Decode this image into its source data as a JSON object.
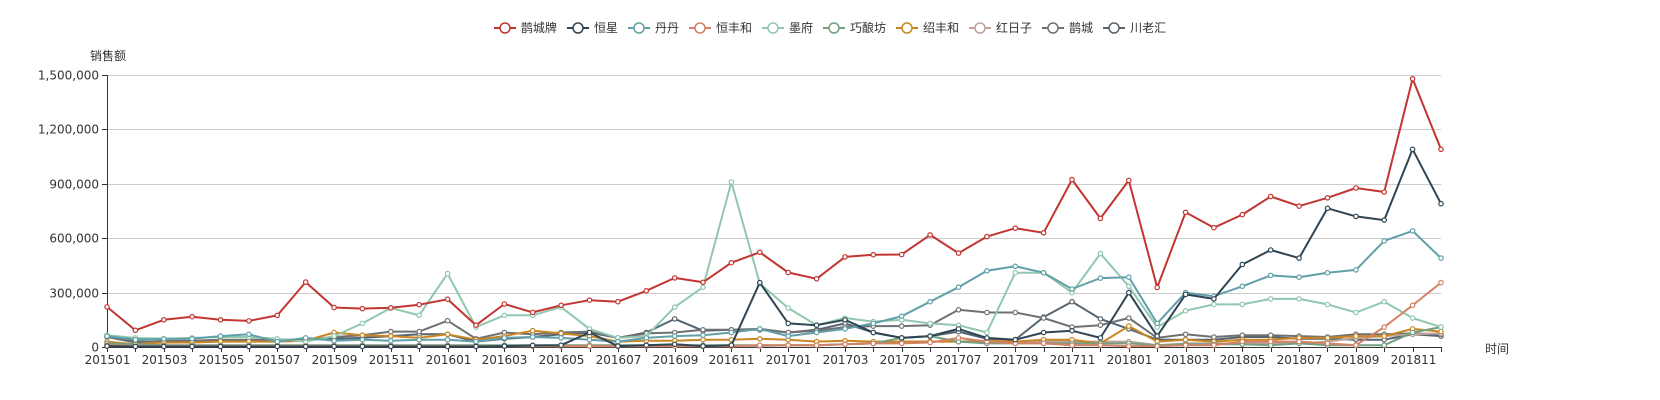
{
  "chart_data": {
    "type": "line",
    "title": "",
    "xlabel": "时间",
    "ylabel": "销售额",
    "ylim": [
      0,
      1500000
    ],
    "yticks": [
      0,
      300000,
      600000,
      900000,
      1200000,
      1500000
    ],
    "ytick_labels": [
      "0",
      "300,000",
      "600,000",
      "900,000",
      "1,200,000",
      "1,500,000"
    ],
    "grid": true,
    "legend_position": "top-center",
    "x": [
      "201501",
      "201502",
      "201503",
      "201504",
      "201505",
      "201506",
      "201507",
      "201508",
      "201509",
      "201510",
      "201511",
      "201512",
      "201601",
      "201602",
      "201603",
      "201604",
      "201605",
      "201606",
      "201607",
      "201608",
      "201609",
      "201610",
      "201611",
      "201612",
      "201701",
      "201702",
      "201703",
      "201704",
      "201705",
      "201706",
      "201707",
      "201708",
      "201709",
      "201710",
      "201711",
      "201712",
      "201801",
      "201802",
      "201803",
      "201804",
      "201805",
      "201806",
      "201807",
      "201808",
      "201809",
      "201810",
      "201811",
      "201812"
    ],
    "xtick_labels": [
      "201501",
      "201503",
      "201505",
      "201507",
      "201509",
      "201511",
      "201601",
      "201603",
      "201605",
      "201607",
      "201609",
      "201611",
      "201701",
      "201703",
      "201705",
      "201707",
      "201709",
      "201711",
      "201801",
      "201803",
      "201805",
      "201807",
      "201809",
      "201811"
    ],
    "series": [
      {
        "name": "鹊城牌",
        "color": "#c23531",
        "values": [
          221000,
          92000,
          150000,
          167000,
          150000,
          144000,
          174000,
          358000,
          218000,
          212000,
          216000,
          233000,
          263000,
          120000,
          237000,
          191000,
          230000,
          258000,
          250000,
          310000,
          381000,
          357000,
          465000,
          522000,
          411000,
          376000,
          497000,
          509000,
          510000,
          618000,
          518000,
          609000,
          655000,
          630000,
          923000,
          709000,
          919000,
          328000,
          743000,
          658000,
          730000,
          830000,
          777000,
          823000,
          877000,
          855000,
          1479000,
          1090000
        ]
      },
      {
        "name": "恒星",
        "color": "#2f4554",
        "values": [
          5000,
          3000,
          3000,
          3000,
          3000,
          3000,
          3000,
          3000,
          3000,
          3000,
          3000,
          3000,
          3000,
          3000,
          5000,
          8000,
          10000,
          80000,
          5000,
          10000,
          15000,
          5000,
          10000,
          355000,
          130000,
          120000,
          150000,
          80000,
          50000,
          60000,
          100000,
          50000,
          40000,
          80000,
          90000,
          50000,
          300000,
          60000,
          290000,
          265000,
          455000,
          535000,
          490000,
          765000,
          720000,
          700000,
          1090000,
          790000
        ]
      },
      {
        "name": "丹丹",
        "color": "#61a0a8",
        "values": [
          60000,
          40000,
          45000,
          45000,
          60000,
          70000,
          30000,
          50000,
          35000,
          40000,
          35000,
          40000,
          40000,
          30000,
          50000,
          55000,
          50000,
          40000,
          30000,
          50000,
          60000,
          65000,
          80000,
          100000,
          60000,
          80000,
          100000,
          130000,
          170000,
          250000,
          330000,
          420000,
          445000,
          410000,
          320000,
          380000,
          385000,
          130000,
          300000,
          280000,
          335000,
          395000,
          385000,
          410000,
          425000,
          585000,
          640000,
          490000
        ]
      },
      {
        "name": "恒丰和",
        "color": "#d48265",
        "values": [
          10000,
          5000,
          5000,
          5000,
          5000,
          5000,
          5000,
          5000,
          5000,
          5000,
          5000,
          5000,
          5000,
          5000,
          5000,
          5000,
          5000,
          5000,
          5000,
          5000,
          5000,
          5000,
          5000,
          10000,
          10000,
          10000,
          15000,
          20000,
          20000,
          25000,
          50000,
          30000,
          20000,
          20000,
          10000,
          10000,
          5000,
          5000,
          10000,
          10000,
          30000,
          30000,
          30000,
          20000,
          10000,
          110000,
          230000,
          355000
        ]
      },
      {
        "name": "墨府",
        "color": "#91c7ae",
        "values": [
          65000,
          50000,
          45000,
          50000,
          55000,
          55000,
          45000,
          30000,
          60000,
          130000,
          215000,
          175000,
          405000,
          110000,
          175000,
          175000,
          220000,
          100000,
          50000,
          60000,
          220000,
          330000,
          910000,
          350000,
          215000,
          120000,
          160000,
          140000,
          150000,
          130000,
          120000,
          80000,
          410000,
          410000,
          300000,
          515000,
          335000,
          110000,
          200000,
          235000,
          235000,
          265000,
          265000,
          235000,
          190000,
          250000,
          160000,
          110000
        ]
      },
      {
        "name": "巧酿坊",
        "color": "#749f83",
        "values": [
          20000,
          15000,
          10000,
          10000,
          10000,
          10000,
          10000,
          10000,
          10000,
          10000,
          10000,
          10000,
          10000,
          10000,
          10000,
          10000,
          10000,
          10000,
          10000,
          10000,
          10000,
          10000,
          10000,
          10000,
          10000,
          10000,
          15000,
          20000,
          50000,
          60000,
          30000,
          20000,
          20000,
          20000,
          20000,
          20000,
          20000,
          10000,
          15000,
          15000,
          15000,
          10000,
          20000,
          10000,
          10000,
          10000,
          80000,
          110000
        ]
      },
      {
        "name": "绍丰和",
        "color": "#ca8622",
        "values": [
          30000,
          15000,
          25000,
          25000,
          30000,
          30000,
          30000,
          35000,
          80000,
          65000,
          60000,
          50000,
          70000,
          40000,
          60000,
          90000,
          75000,
          60000,
          30000,
          35000,
          35000,
          40000,
          40000,
          45000,
          40000,
          30000,
          35000,
          30000,
          30000,
          30000,
          30000,
          35000,
          30000,
          40000,
          40000,
          20000,
          115000,
          30000,
          40000,
          30000,
          40000,
          40000,
          50000,
          50000,
          60000,
          60000,
          100000,
          85000
        ]
      },
      {
        "name": "红日子",
        "color": "#bda29a",
        "values": [
          5000,
          5000,
          5000,
          5000,
          5000,
          5000,
          5000,
          5000,
          5000,
          5000,
          5000,
          5000,
          5000,
          5000,
          5000,
          5000,
          5000,
          5000,
          5000,
          5000,
          5000,
          5000,
          5000,
          5000,
          10000,
          10000,
          15000,
          20000,
          30000,
          30000,
          30000,
          30000,
          30000,
          30000,
          30000,
          30000,
          30000,
          10000,
          20000,
          20000,
          20000,
          20000,
          20000,
          30000,
          50000,
          60000,
          70000,
          75000
        ]
      },
      {
        "name": "鹊城",
        "color": "#6e7074",
        "values": [
          55000,
          25000,
          35000,
          35000,
          40000,
          40000,
          40000,
          40000,
          55000,
          65000,
          85000,
          85000,
          145000,
          45000,
          80000,
          70000,
          80000,
          85000,
          50000,
          75000,
          80000,
          95000,
          95000,
          100000,
          80000,
          90000,
          110000,
          115000,
          115000,
          120000,
          205000,
          190000,
          190000,
          160000,
          110000,
          120000,
          160000,
          50000,
          70000,
          55000,
          65000,
          65000,
          60000,
          55000,
          70000,
          70000,
          75000,
          70000
        ]
      },
      {
        "name": "川老汇",
        "color": "#546570",
        "values": [
          60000,
          30000,
          30000,
          30000,
          35000,
          35000,
          35000,
          40000,
          45000,
          50000,
          60000,
          70000,
          70000,
          30000,
          45000,
          55000,
          70000,
          80000,
          50000,
          80000,
          155000,
          90000,
          95000,
          95000,
          80000,
          95000,
          130000,
          80000,
          50000,
          60000,
          85000,
          45000,
          40000,
          165000,
          250000,
          155000,
          100000,
          40000,
          40000,
          40000,
          55000,
          55000,
          45000,
          45000,
          40000,
          40000,
          70000,
          60000
        ]
      }
    ]
  },
  "legend": {
    "items": [
      "鹊城牌",
      "恒星",
      "丹丹",
      "恒丰和",
      "墨府",
      "巧酿坊",
      "绍丰和",
      "红日子",
      "鹊城",
      "川老汇"
    ]
  },
  "axes": {
    "y_name": "销售额",
    "x_name": "时间"
  }
}
